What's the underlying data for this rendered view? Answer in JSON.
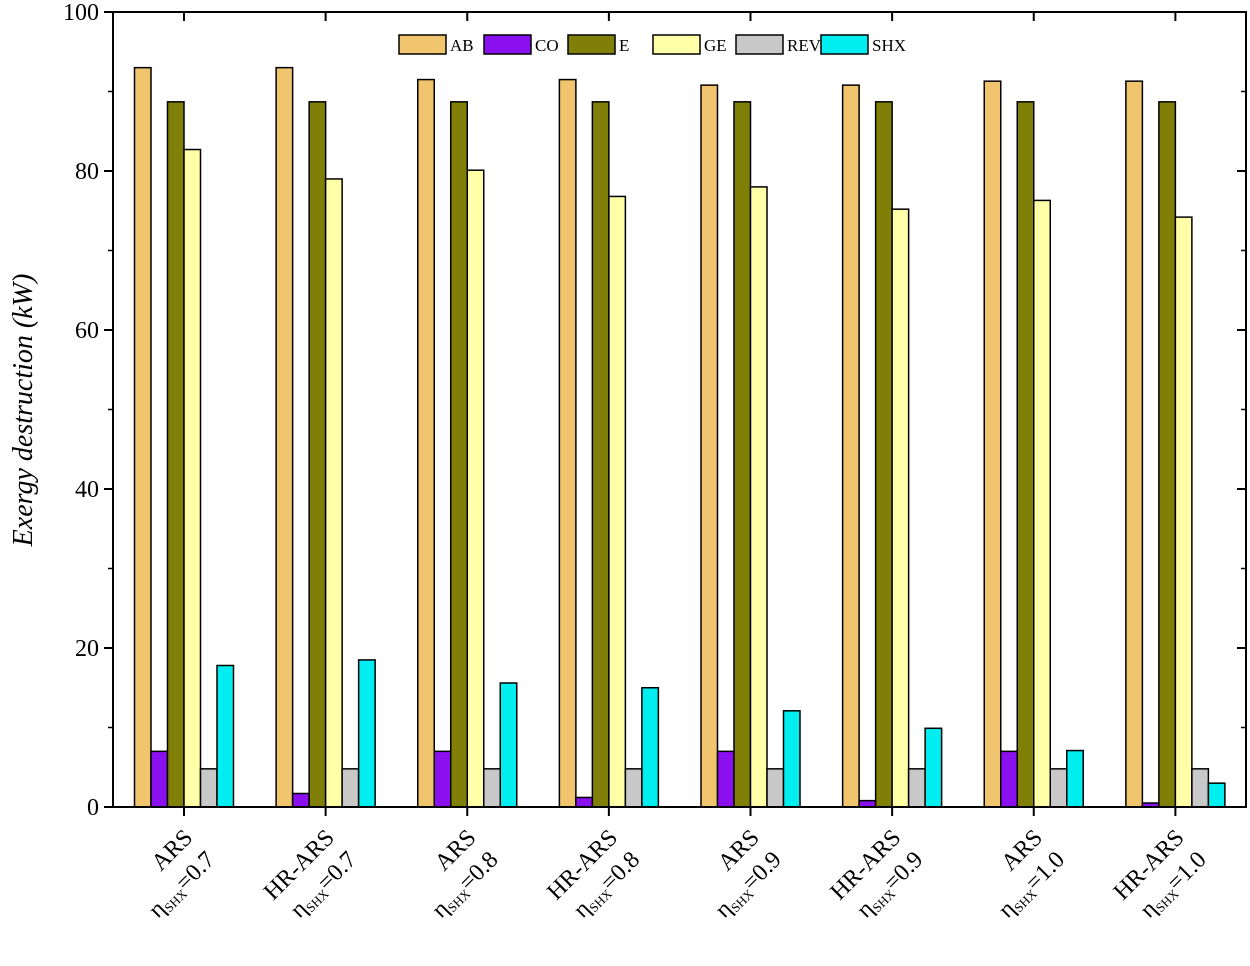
{
  "chart_data": {
    "type": "bar",
    "title": "",
    "xlabel": "",
    "ylabel": "Exergy destruction (kW)",
    "ylim": [
      0,
      100
    ],
    "yticks": [
      0,
      20,
      40,
      60,
      80,
      100
    ],
    "grid": false,
    "legend_position": "top",
    "categories": [
      {
        "line1": "ARS",
        "symbol": "η",
        "sub": "SHX",
        "value_text": "=0.7"
      },
      {
        "line1": "HR-ARS",
        "symbol": "η",
        "sub": "SHX",
        "value_text": "=0.7"
      },
      {
        "line1": "ARS",
        "symbol": "η",
        "sub": "SHX",
        "value_text": "=0.8"
      },
      {
        "line1": "HR-ARS",
        "symbol": "η",
        "sub": "SHX",
        "value_text": "=0.8"
      },
      {
        "line1": "ARS",
        "symbol": "η",
        "sub": "SHX",
        "value_text": "=0.9"
      },
      {
        "line1": "HR-ARS",
        "symbol": "η",
        "sub": "SHX",
        "value_text": "=0.9"
      },
      {
        "line1": "ARS",
        "symbol": "η",
        "sub": "SHX",
        "value_text": "=1.0"
      },
      {
        "line1": "HR-ARS",
        "symbol": "η",
        "sub": "SHX",
        "value_text": "=1.0"
      }
    ],
    "series": [
      {
        "name": "AB",
        "color": "#f0c56e",
        "values": [
          93.0,
          93.0,
          91.5,
          91.5,
          90.8,
          90.8,
          91.3,
          91.3
        ]
      },
      {
        "name": "CO",
        "color": "#8a10f0",
        "values": [
          7.0,
          1.7,
          7.0,
          1.2,
          7.0,
          0.8,
          7.0,
          0.5
        ]
      },
      {
        "name": "E",
        "color": "#808008",
        "values": [
          88.7,
          88.7,
          88.7,
          88.7,
          88.7,
          88.7,
          88.7,
          88.7
        ]
      },
      {
        "name": "GE",
        "color": "#ffffa8",
        "values": [
          82.7,
          79.0,
          80.1,
          76.8,
          78.0,
          75.2,
          76.3,
          74.2
        ]
      },
      {
        "name": "REV",
        "color": "#c8c8c8",
        "values": [
          4.8,
          4.8,
          4.8,
          4.8,
          4.8,
          4.8,
          4.8,
          4.8
        ]
      },
      {
        "name": "SHX",
        "color": "#00eef0",
        "values": [
          17.8,
          18.5,
          15.6,
          15.0,
          12.1,
          9.9,
          7.1,
          3.0
        ]
      }
    ]
  }
}
